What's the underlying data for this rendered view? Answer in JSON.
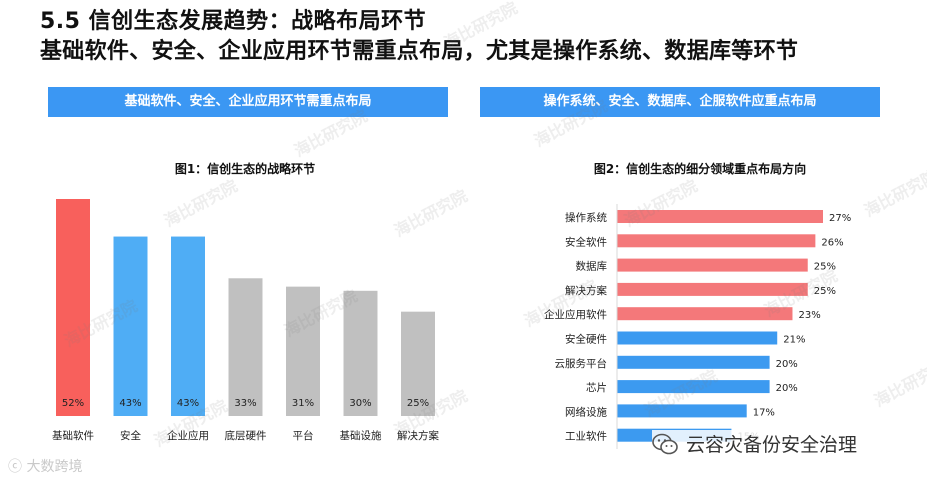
{
  "header": {
    "title": "5.5 信创生态发展趋势：战略布局环节",
    "subtitle": "基础软件、安全、企业应用环节需重点布局，尤其是操作系统、数据库等环节"
  },
  "banners": {
    "left": "基础软件、安全、企业应用环节需重点布局",
    "right": "操作系统、安全、数据库、企服软件应重点布局"
  },
  "watermark_text": "海比研究院",
  "source_logo": "大数跨境",
  "footer_tag": "云容灾备份安全治理",
  "colors": {
    "red": "#f8605c",
    "blue": "#4fadf5",
    "gray": "#c0c0c0",
    "banner": "#3b97f3",
    "pink": "#f4787a",
    "hblue": "#3c9af0"
  },
  "chart_data": [
    {
      "type": "bar",
      "title": "图1：信创生态的战略环节",
      "categories": [
        "基础软件",
        "安全",
        "企业应用",
        "底层硬件",
        "平台",
        "基础设施",
        "解决方案"
      ],
      "values": [
        52,
        43,
        43,
        33,
        31,
        30,
        25
      ],
      "labels": [
        "52%",
        "43%",
        "43%",
        "33%",
        "31%",
        "30%",
        "25%"
      ],
      "bar_colors": [
        "red",
        "blue",
        "blue",
        "gray",
        "gray",
        "gray",
        "gray"
      ],
      "ylim": [
        0,
        52
      ],
      "grid": false
    },
    {
      "type": "bar",
      "orientation": "horizontal",
      "title": "图2：信创生态的细分领域重点布局方向",
      "categories": [
        "操作系统",
        "安全软件",
        "数据库",
        "解决方案",
        "企业应用软件",
        "安全硬件",
        "云服务平台",
        "芯片",
        "网络设施",
        "工业软件"
      ],
      "values": [
        27,
        26,
        25,
        25,
        23,
        21,
        20,
        20,
        17,
        15
      ],
      "labels": [
        "27%",
        "26%",
        "25%",
        "25%",
        "23%",
        "21%",
        "20%",
        "20%",
        "17%",
        "15%"
      ],
      "bar_colors": [
        "pink",
        "pink",
        "pink",
        "pink",
        "pink",
        "hblue",
        "hblue",
        "hblue",
        "hblue",
        "hblue"
      ],
      "xlim": [
        0,
        27
      ],
      "grid": false
    }
  ]
}
